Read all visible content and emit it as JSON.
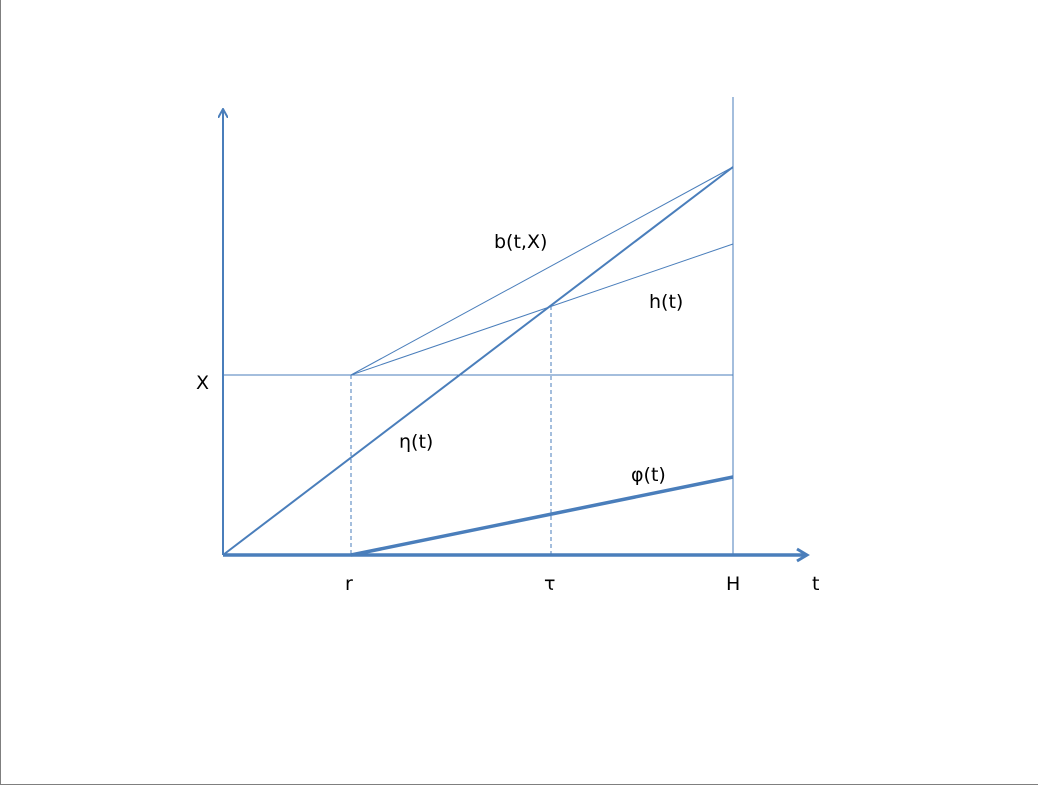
{
  "diagram": {
    "labels": {
      "x_level": "X",
      "r": "r",
      "tau": "τ",
      "H": "H",
      "t": "t",
      "b": "b(t,X)",
      "h": "h(t)",
      "eta": "η(t)",
      "phi": "φ(t)"
    },
    "colors": {
      "line": "#4a7ebb",
      "text": "#000000",
      "frame": "#7f7f7f"
    }
  }
}
